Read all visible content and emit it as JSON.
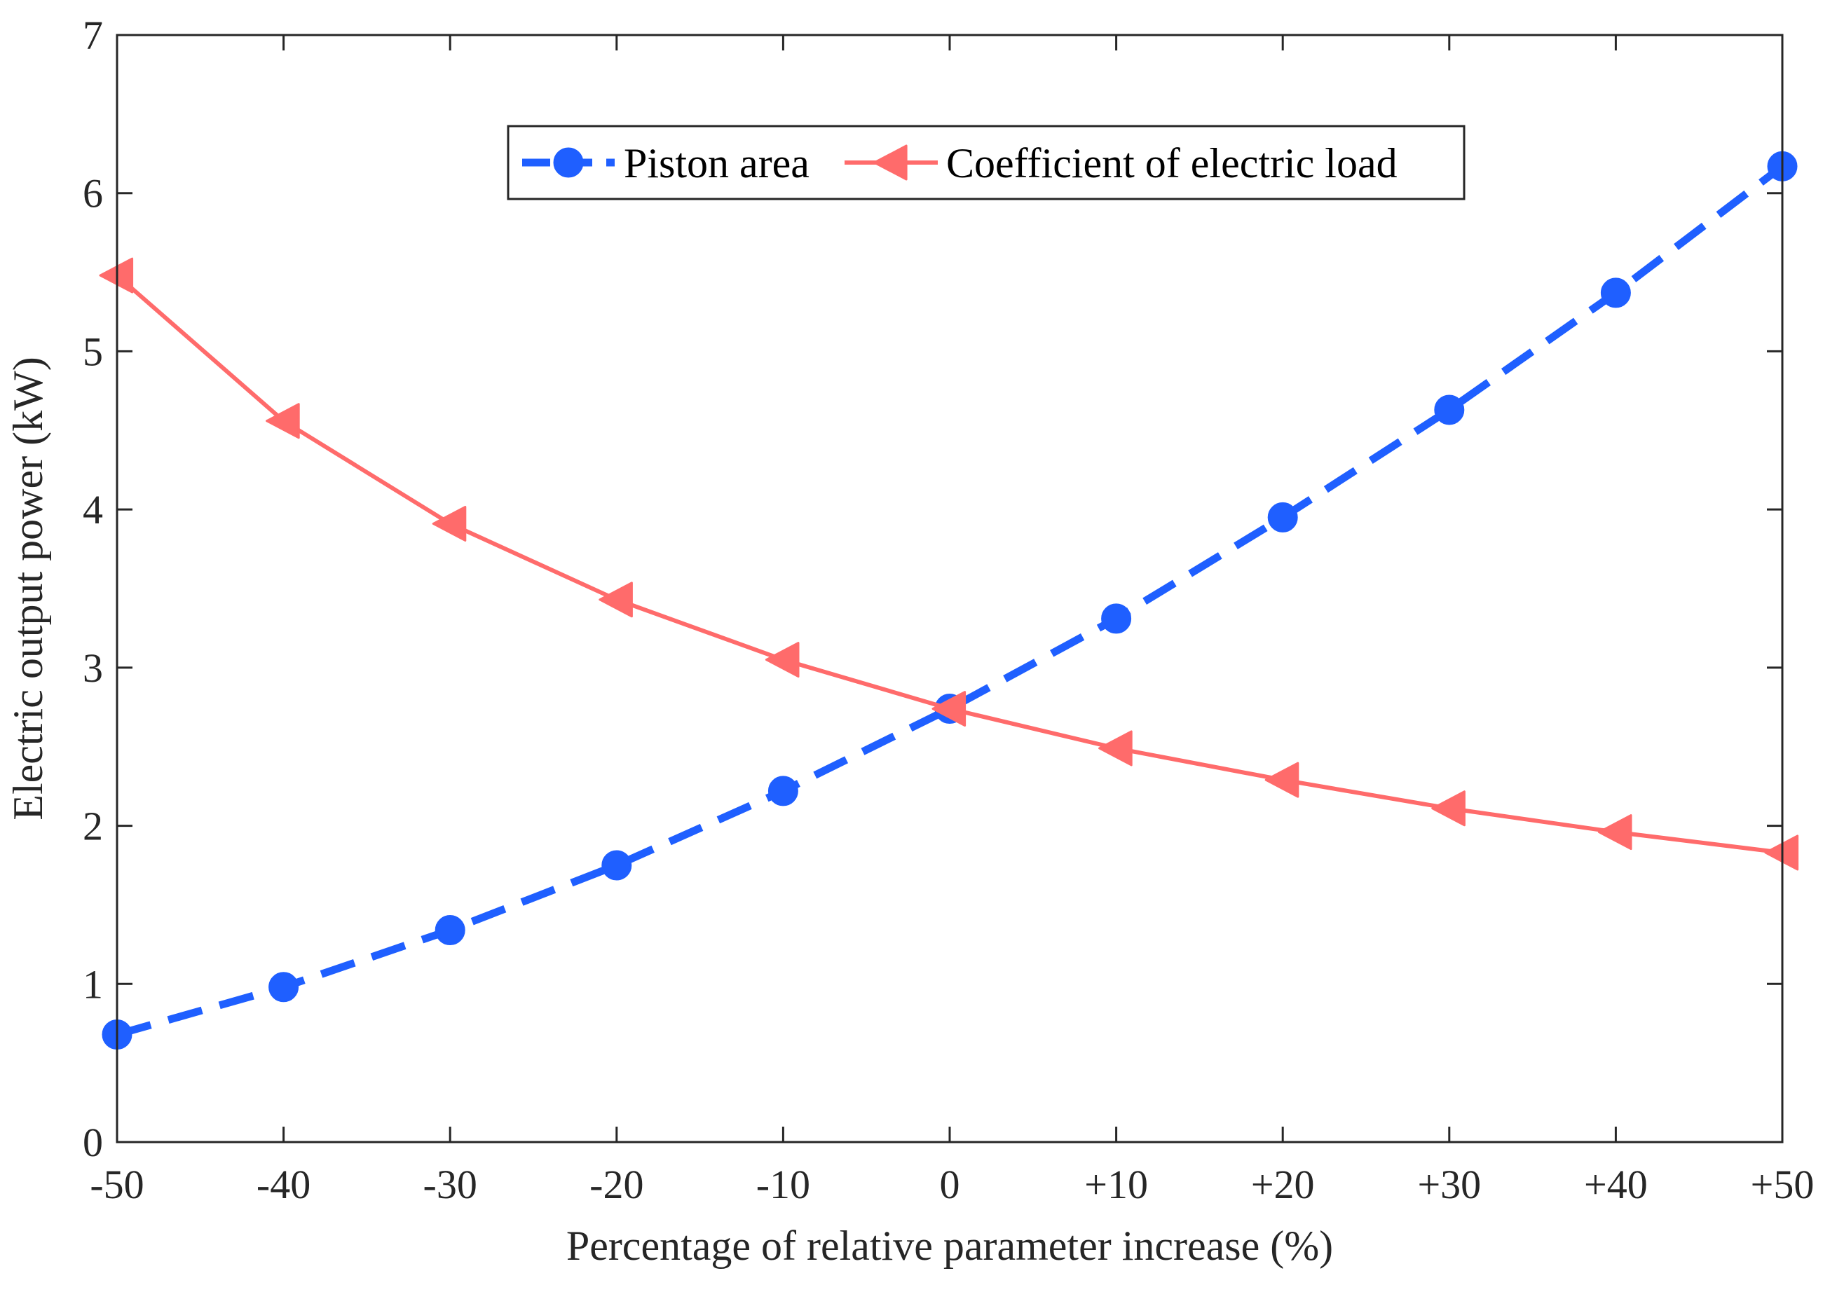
{
  "chart_data": {
    "type": "line",
    "title": "",
    "xlabel": "Percentage of relative parameter increase (%)",
    "ylabel": "Electric output power (kW)",
    "categories": [
      "-50",
      "-40",
      "-30",
      "-20",
      "-10",
      "0",
      "+10",
      "+20",
      "+30",
      "+40",
      "+50"
    ],
    "x": [
      -50,
      -40,
      -30,
      -20,
      -10,
      0,
      10,
      20,
      30,
      40,
      50
    ],
    "xlim": [
      -50,
      50
    ],
    "ylim": [
      0,
      7
    ],
    "yticks": [
      0,
      1,
      2,
      3,
      4,
      5,
      6,
      7
    ],
    "ytick_labels": [
      "0",
      "1",
      "2",
      "3",
      "4",
      "5",
      "6",
      "7"
    ],
    "grid": false,
    "legend_position": "top-center",
    "series": [
      {
        "name": "Piston area",
        "color": "#1f5fff",
        "line_style": "dashed",
        "marker": "circle",
        "values": [
          0.68,
          0.98,
          1.34,
          1.75,
          2.22,
          2.74,
          3.31,
          3.95,
          4.63,
          5.37,
          6.17
        ]
      },
      {
        "name": "Coefficient of electric load",
        "color": "#ff6b6b",
        "line_style": "solid",
        "marker": "triangle-left",
        "values": [
          5.48,
          4.56,
          3.91,
          3.43,
          3.05,
          2.74,
          2.49,
          2.29,
          2.11,
          1.96,
          1.83
        ]
      }
    ]
  }
}
